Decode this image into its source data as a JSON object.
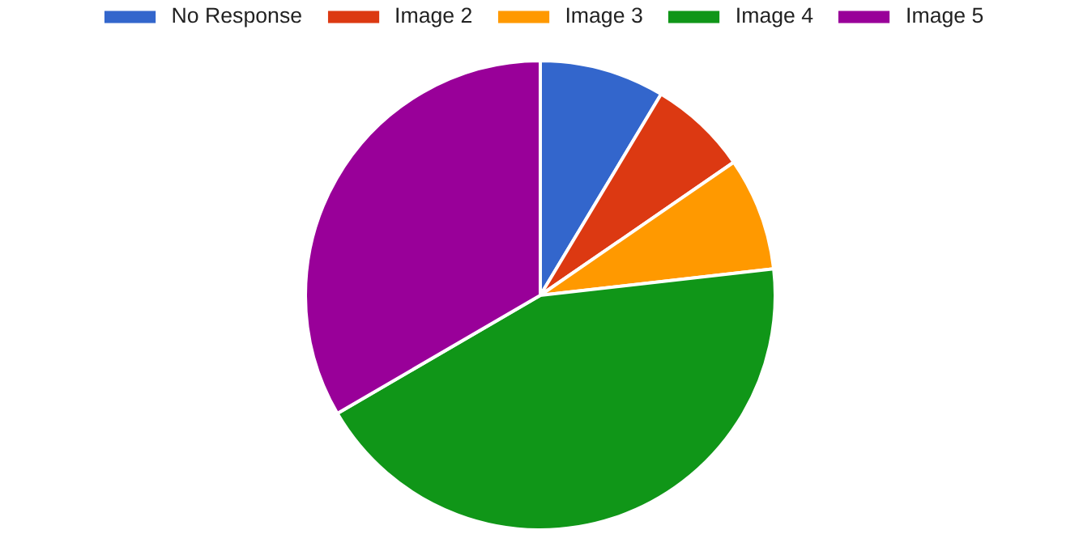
{
  "chart_data": {
    "type": "pie",
    "categories": [
      "No Response",
      "Image 2",
      "Image 3",
      "Image 4",
      "Image 5"
    ],
    "values": [
      8.6,
      6.8,
      7.8,
      43.4,
      33.4
    ],
    "colors": [
      "#3366cc",
      "#dc3912",
      "#ff9900",
      "#109618",
      "#990099"
    ],
    "legend": "top"
  }
}
